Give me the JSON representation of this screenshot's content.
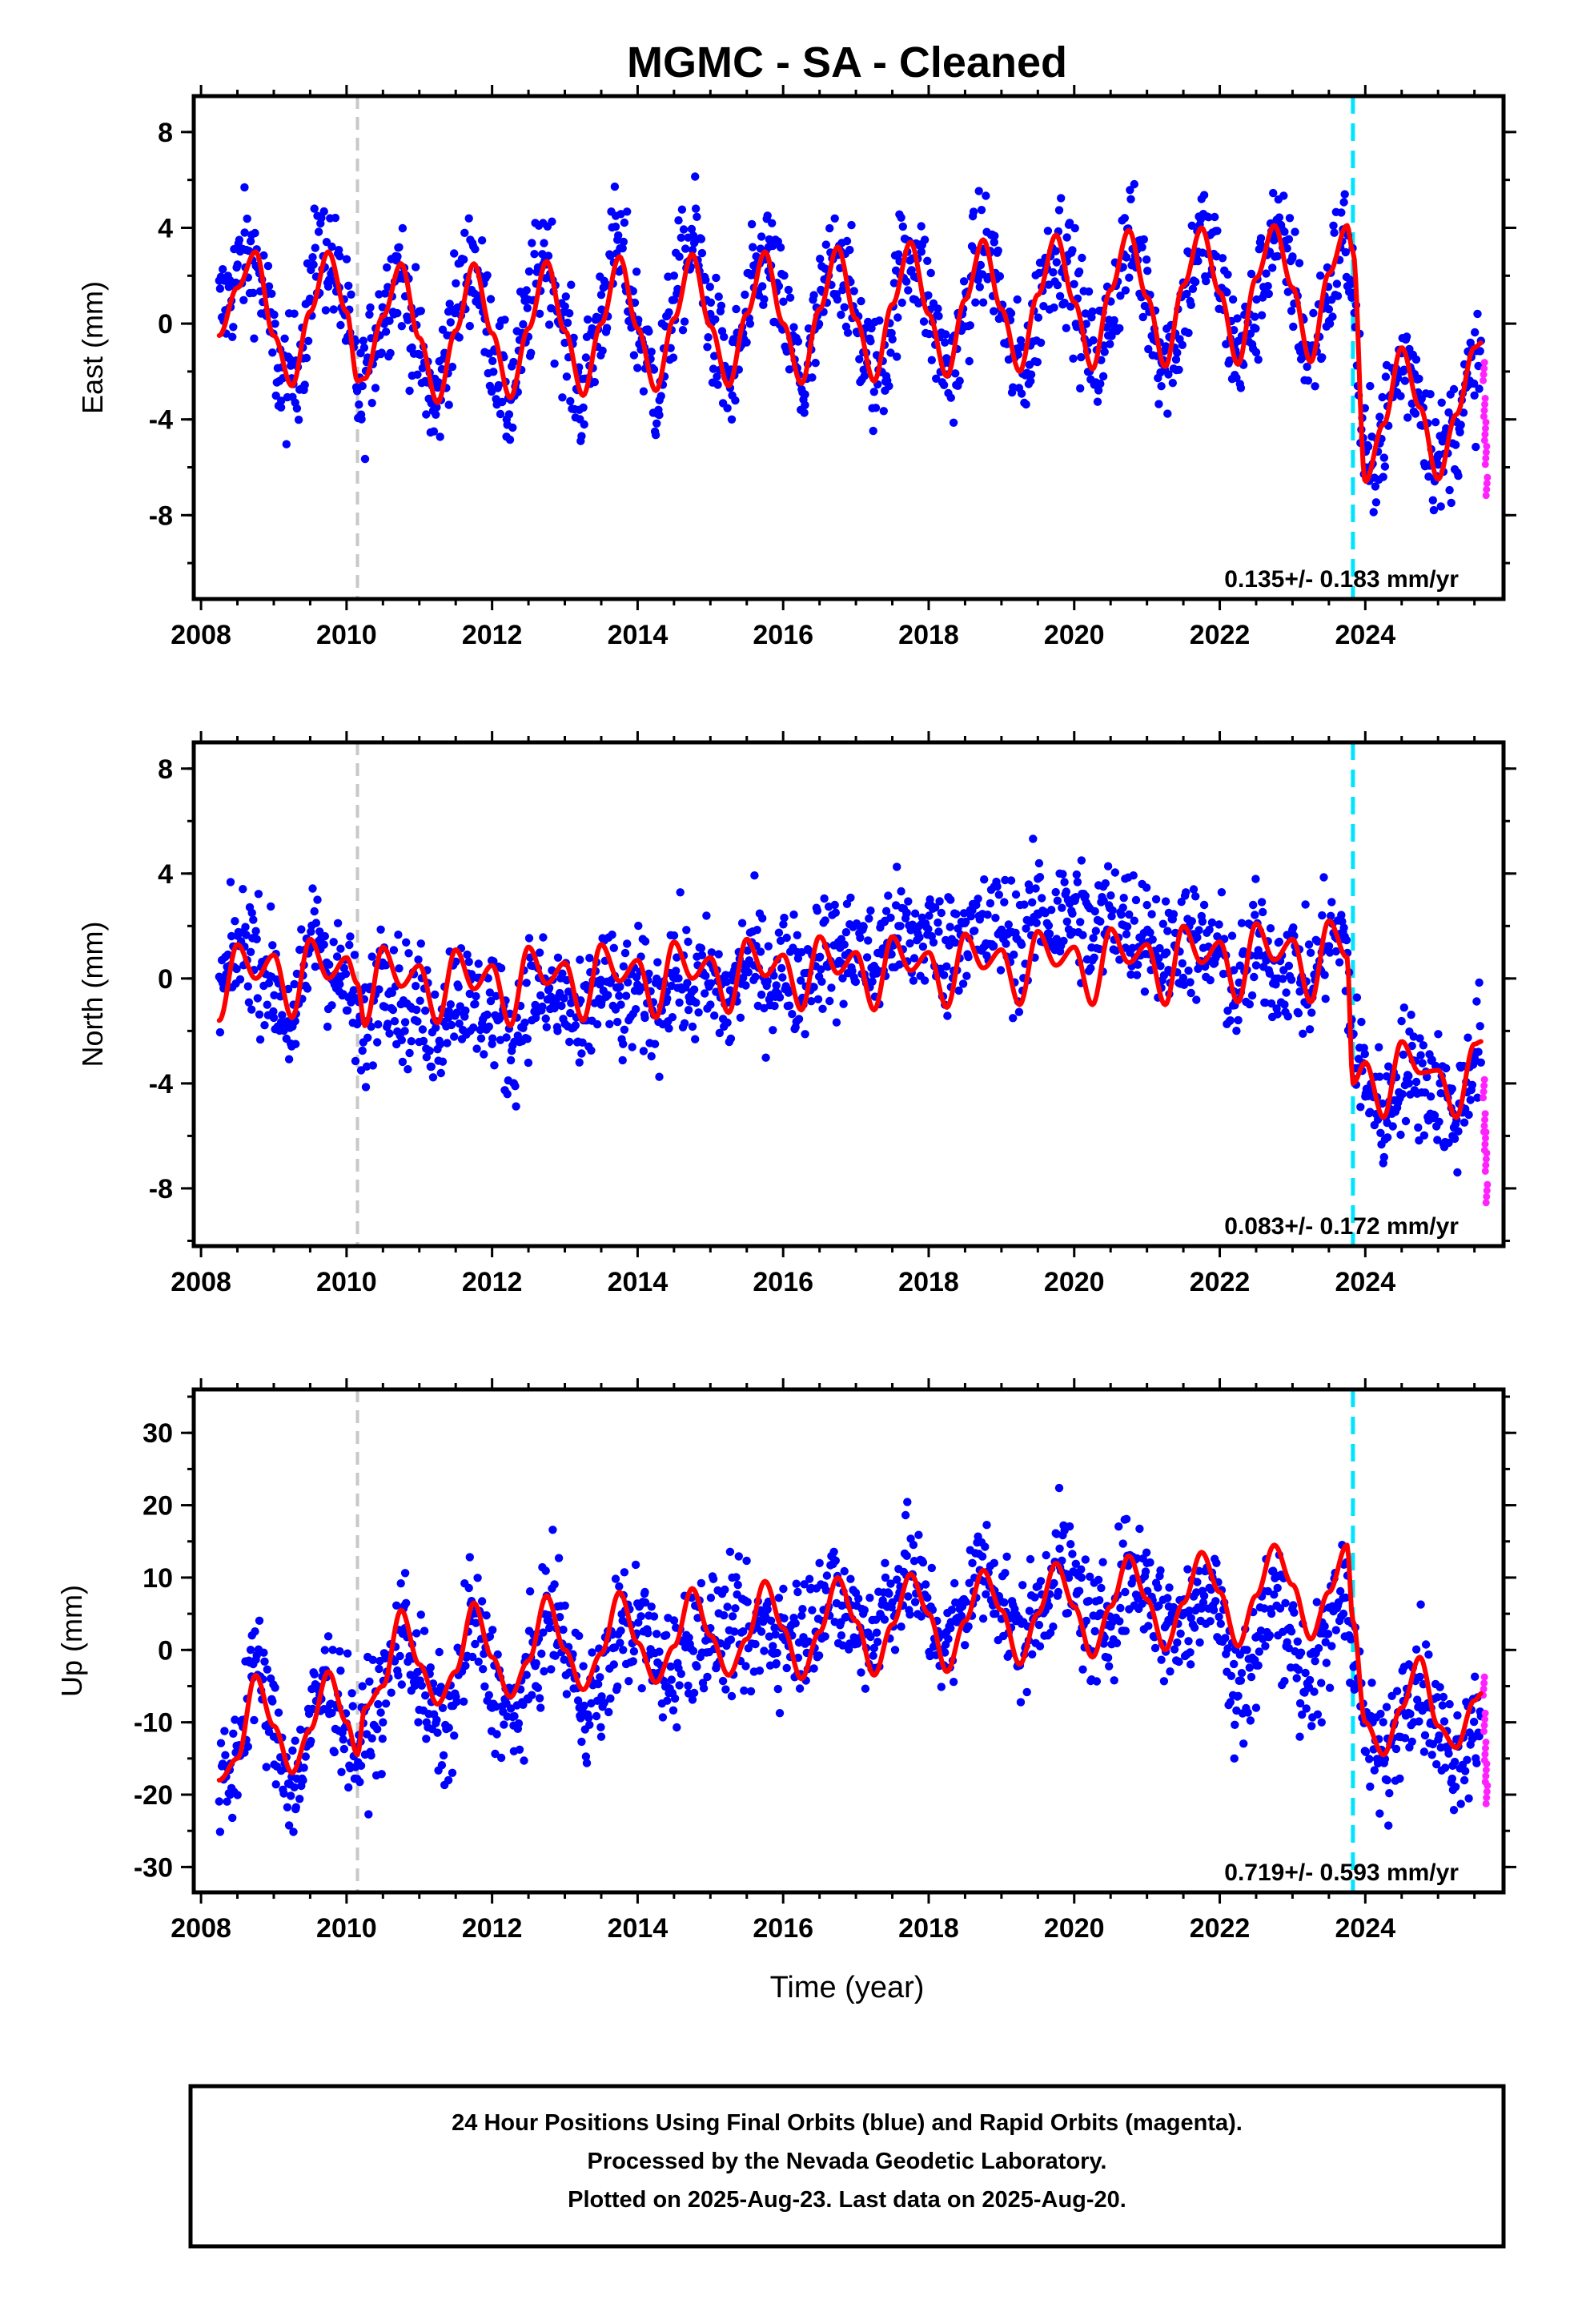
{
  "title": "MGMC  - SA - Cleaned",
  "xlabel": "Time (year)",
  "footer": {
    "line1": "24 Hour Positions Using Final Orbits (blue) and Rapid Orbits (magenta).",
    "line2": "Processed by the Nevada Geodetic Laboratory.",
    "line3": "Plotted on 2025-Aug-23. Last data on 2025-Aug-20."
  },
  "colors": {
    "final_points": "#0000ff",
    "rapid_points": "#ff22ff",
    "model": "#ff0000",
    "equipment_change": "#c8c8c8",
    "event": "#00e5ff"
  },
  "chart_data": [
    {
      "type": "scatter",
      "component": "east",
      "ylabel": "East (mm)",
      "rate": "0.135+/- 0.183 mm/yr",
      "xlim": [
        2007.9,
        2025.9
      ],
      "ylim": [
        -11.5,
        9.5
      ],
      "xticks": [
        2008,
        2010,
        2012,
        2014,
        2016,
        2018,
        2020,
        2022,
        2024
      ],
      "yticks": [
        -8,
        -4,
        0,
        4,
        8
      ],
      "vlines": {
        "equipment_change": 2010.15,
        "event": 2023.83
      },
      "series": [
        {
          "role": "model",
          "x": [
            2008.25,
            2008.5,
            2008.75,
            2009.0,
            2009.25,
            2009.5,
            2009.75,
            2010.0,
            2010.15,
            2010.25,
            2010.5,
            2010.75,
            2011.0,
            2011.25,
            2011.5,
            2011.75,
            2012.0,
            2012.25,
            2012.5,
            2012.75,
            2013.0,
            2013.25,
            2013.5,
            2013.75,
            2014.0,
            2014.25,
            2014.5,
            2014.75,
            2015.0,
            2015.25,
            2015.5,
            2015.75,
            2016.0,
            2016.25,
            2016.5,
            2016.75,
            2017.0,
            2017.25,
            2017.5,
            2017.75,
            2018.0,
            2018.25,
            2018.5,
            2018.75,
            2019.0,
            2019.25,
            2019.5,
            2019.75,
            2020.0,
            2020.25,
            2020.5,
            2020.75,
            2021.0,
            2021.25,
            2021.5,
            2021.75,
            2022.0,
            2022.25,
            2022.5,
            2022.75,
            2023.0,
            2023.25,
            2023.5,
            2023.75,
            2023.83,
            2024.0,
            2024.25,
            2024.5,
            2024.75,
            2025.0,
            2025.25,
            2025.5,
            2025.6
          ],
          "y": [
            -0.5,
            1.5,
            3.0,
            -0.5,
            -2.6,
            0.5,
            3.0,
            0.5,
            -2.4,
            -2.3,
            0.3,
            2.5,
            -0.6,
            -3.3,
            -0.3,
            2.5,
            -0.4,
            -3.1,
            -0.2,
            2.6,
            -0.3,
            -3.0,
            0.0,
            2.8,
            -0.2,
            -2.8,
            0.2,
            2.9,
            -0.1,
            -2.6,
            0.4,
            3.0,
            0.0,
            -2.5,
            0.6,
            3.2,
            0.2,
            -2.4,
            0.8,
            3.4,
            0.4,
            -2.2,
            1.0,
            3.5,
            0.6,
            -2.0,
            1.2,
            3.7,
            0.9,
            -1.9,
            1.4,
            3.9,
            1.1,
            -1.8,
            1.6,
            4.0,
            1.3,
            -1.7,
            1.9,
            4.1,
            1.5,
            -1.6,
            2.1,
            4.1,
            3.0,
            -6.6,
            -4.2,
            -1.0,
            -3.5,
            -6.5,
            -3.8,
            -1.0,
            -0.8
          ]
        },
        {
          "role": "final",
          "x": [
            2008.4,
            2008.6,
            2008.9,
            2009.1,
            2009.4,
            2009.6,
            2009.9,
            2010.2,
            2010.4,
            2010.7,
            2010.9,
            2011.2,
            2011.4,
            2011.7,
            2011.9,
            2012.2,
            2012.5,
            2012.7,
            2013.0,
            2013.2,
            2013.5,
            2013.7,
            2014.0,
            2014.3,
            2014.5,
            2014.8,
            2015.0,
            2015.3,
            2015.6,
            2015.8,
            2016.1,
            2016.3,
            2016.6,
            2016.8,
            2017.1,
            2017.4,
            2017.6,
            2017.9,
            2018.1,
            2018.4,
            2018.6,
            2018.9,
            2019.1,
            2019.4,
            2019.6,
            2019.9,
            2020.2,
            2020.4,
            2020.7,
            2020.9,
            2021.2,
            2021.4,
            2021.7,
            2021.9,
            2022.2,
            2022.5,
            2022.7,
            2023.0,
            2023.2,
            2023.5,
            2023.7,
            2024.0,
            2024.2,
            2024.5,
            2024.7,
            2025.0,
            2025.2,
            2025.5
          ],
          "y": [
            1.8,
            3.8,
            0.5,
            -3.5,
            -1.0,
            4.5,
            1.5,
            -3.8,
            -0.2,
            2.8,
            -1.0,
            -4.5,
            0.5,
            3.5,
            0.2,
            -4.0,
            1.0,
            4.2,
            -0.8,
            -3.6,
            1.2,
            4.5,
            0.0,
            -3.2,
            2.0,
            4.8,
            0.4,
            -3.0,
            1.5,
            3.2,
            -0.6,
            -3.4,
            1.8,
            3.0,
            -1.2,
            -2.8,
            2.6,
            3.0,
            -0.5,
            -2.6,
            2.0,
            3.4,
            -1.5,
            -2.4,
            2.2,
            3.6,
            -0.8,
            -2.2,
            2.8,
            3.2,
            -1.6,
            -1.5,
            3.0,
            3.8,
            -0.9,
            -1.2,
            3.6,
            2.8,
            -1.8,
            0.6,
            3.8,
            -6.0,
            -5.0,
            -2.0,
            -1.5,
            -5.5,
            -5.0,
            -3.0
          ]
        },
        {
          "role": "rapid",
          "x": [
            2025.62,
            2025.63,
            2025.64,
            2025.65,
            2025.66
          ],
          "y": [
            -2.0,
            -3.5,
            -4.5,
            -5.5,
            -6.8
          ]
        }
      ]
    },
    {
      "type": "scatter",
      "component": "north",
      "ylabel": "North (mm)",
      "rate": "0.083+/- 0.172 mm/yr",
      "xlim": [
        2007.9,
        2025.9
      ],
      "ylim": [
        -10.2,
        9.0
      ],
      "xticks": [
        2008,
        2010,
        2012,
        2014,
        2016,
        2018,
        2020,
        2022,
        2024
      ],
      "yticks": [
        -8,
        -4,
        0,
        4,
        8
      ],
      "vlines": {
        "equipment_change": 2010.15,
        "event": 2023.83
      },
      "series": [
        {
          "role": "model",
          "x": [
            2008.25,
            2008.5,
            2008.75,
            2009.0,
            2009.25,
            2009.5,
            2009.75,
            2010.0,
            2010.15,
            2010.25,
            2010.5,
            2010.75,
            2011.0,
            2011.25,
            2011.5,
            2011.75,
            2012.0,
            2012.25,
            2012.5,
            2012.75,
            2013.0,
            2013.25,
            2013.5,
            2013.75,
            2014.0,
            2014.25,
            2014.5,
            2014.75,
            2015.0,
            2015.25,
            2015.5,
            2015.75,
            2016.0,
            2016.25,
            2016.5,
            2016.75,
            2017.0,
            2017.25,
            2017.5,
            2017.75,
            2018.0,
            2018.25,
            2018.5,
            2018.75,
            2019.0,
            2019.25,
            2019.5,
            2019.75,
            2020.0,
            2020.25,
            2020.5,
            2020.75,
            2021.0,
            2021.25,
            2021.5,
            2021.75,
            2022.0,
            2022.25,
            2022.5,
            2022.75,
            2023.0,
            2023.25,
            2023.5,
            2023.75,
            2023.83,
            2024.0,
            2024.25,
            2024.5,
            2024.75,
            2025.0,
            2025.25,
            2025.5,
            2025.6
          ],
          "y": [
            -1.6,
            1.3,
            0.0,
            0.9,
            -1.5,
            1.5,
            0.0,
            0.8,
            -0.2,
            -1.8,
            1.2,
            -0.3,
            0.5,
            -1.7,
            1.1,
            -0.4,
            0.5,
            -1.8,
            1.2,
            -0.2,
            0.6,
            -1.6,
            1.3,
            -0.1,
            0.7,
            -1.5,
            1.4,
            0.0,
            0.8,
            -1.3,
            1.5,
            0.1,
            0.9,
            -1.2,
            1.6,
            0.2,
            1.0,
            -1.2,
            1.6,
            0.3,
            1.0,
            -1.1,
            1.7,
            0.4,
            1.1,
            -1.0,
            1.8,
            0.5,
            1.2,
            -1.0,
            1.9,
            0.6,
            1.3,
            -1.0,
            2.0,
            0.6,
            1.4,
            -0.9,
            2.1,
            0.7,
            1.5,
            -0.9,
            2.2,
            0.8,
            -4.0,
            -3.2,
            -5.3,
            -2.4,
            -3.6,
            -3.5,
            -5.3,
            -2.5,
            -2.4
          ]
        },
        {
          "role": "final",
          "x": [
            2008.4,
            2008.7,
            2009.0,
            2009.3,
            2009.6,
            2009.9,
            2010.2,
            2010.5,
            2010.8,
            2011.1,
            2011.4,
            2011.7,
            2012.0,
            2012.3,
            2012.6,
            2012.9,
            2013.2,
            2013.5,
            2013.8,
            2014.1,
            2014.4,
            2014.7,
            2015.0,
            2015.3,
            2015.6,
            2015.9,
            2016.2,
            2016.5,
            2016.8,
            2017.1,
            2017.4,
            2017.7,
            2018.0,
            2018.3,
            2018.6,
            2018.9,
            2019.2,
            2019.5,
            2019.8,
            2020.1,
            2020.4,
            2020.7,
            2021.0,
            2021.3,
            2021.6,
            2021.9,
            2022.2,
            2022.5,
            2022.8,
            2023.1,
            2023.4,
            2023.7,
            2024.0,
            2024.3,
            2024.6,
            2024.9,
            2025.2,
            2025.5
          ],
          "y": [
            0.5,
            2.5,
            -1.5,
            -2.5,
            3.0,
            -0.5,
            -3.5,
            0.5,
            -2.0,
            -3.0,
            -1.5,
            -2.0,
            -2.5,
            -4.0,
            -1.5,
            -2.0,
            -3.2,
            -1.0,
            -2.5,
            -1.5,
            -0.5,
            -1.2,
            -1.0,
            -0.8,
            0.5,
            -0.5,
            1.0,
            0.8,
            1.5,
            2.0,
            2.2,
            2.5,
            2.8,
            3.0,
            2.6,
            3.5,
            3.2,
            3.8,
            4.0,
            4.5,
            3.5,
            3.8,
            2.8,
            2.5,
            1.5,
            1.0,
            -0.5,
            0.5,
            0.0,
            -0.5,
            1.0,
            1.5,
            -4.5,
            -5.5,
            -4.0,
            -4.5,
            -6.0,
            -3.0
          ]
        },
        {
          "role": "rapid",
          "x": [
            2025.62,
            2025.63,
            2025.64,
            2025.65,
            2025.66
          ],
          "y": [
            -4.2,
            -5.5,
            -6.2,
            -7.0,
            -8.2
          ]
        }
      ]
    },
    {
      "type": "scatter",
      "component": "up",
      "ylabel": "Up (mm)",
      "rate": "0.719+/- 0.593 mm/yr",
      "xlim": [
        2007.9,
        2025.9
      ],
      "ylim": [
        -33.5,
        36
      ],
      "xticks": [
        2008,
        2010,
        2012,
        2014,
        2016,
        2018,
        2020,
        2022,
        2024
      ],
      "yticks": [
        -30,
        -20,
        -10,
        0,
        10,
        20,
        30
      ],
      "vlines": {
        "equipment_change": 2010.15,
        "event": 2023.83
      },
      "series": [
        {
          "role": "model",
          "x": [
            2008.25,
            2008.5,
            2008.75,
            2009.0,
            2009.25,
            2009.5,
            2009.75,
            2010.0,
            2010.15,
            2010.25,
            2010.5,
            2010.75,
            2011.0,
            2011.25,
            2011.5,
            2011.75,
            2012.0,
            2012.25,
            2012.5,
            2012.75,
            2013.0,
            2013.25,
            2013.5,
            2013.75,
            2014.0,
            2014.25,
            2014.5,
            2014.75,
            2015.0,
            2015.25,
            2015.5,
            2015.75,
            2016.0,
            2016.25,
            2016.5,
            2016.75,
            2017.0,
            2017.25,
            2017.5,
            2017.75,
            2018.0,
            2018.25,
            2018.5,
            2018.75,
            2019.0,
            2019.25,
            2019.5,
            2019.75,
            2020.0,
            2020.25,
            2020.5,
            2020.75,
            2021.0,
            2021.25,
            2021.5,
            2021.75,
            2022.0,
            2022.25,
            2022.5,
            2022.75,
            2023.0,
            2023.25,
            2023.5,
            2023.75,
            2023.83,
            2024.0,
            2024.25,
            2024.5,
            2024.75,
            2025.0,
            2025.25,
            2025.5,
            2025.6
          ],
          "y": [
            -18.0,
            -15.0,
            -3.5,
            -10.5,
            -17.0,
            -11.0,
            -3.0,
            -10.0,
            -14.5,
            -8.0,
            -5.0,
            5.5,
            -2.0,
            -7.5,
            -3.0,
            6.5,
            -1.0,
            -6.5,
            -1.5,
            7.5,
            0.0,
            -5.5,
            -0.5,
            8.0,
            1.0,
            -4.5,
            0.5,
            8.5,
            2.0,
            -3.5,
            1.5,
            9.5,
            3.0,
            -4.0,
            2.5,
            10.0,
            4.0,
            -3.5,
            3.5,
            10.5,
            5.0,
            -3.0,
            4.0,
            11.0,
            5.5,
            -2.0,
            5.0,
            12.0,
            6.0,
            -1.0,
            6.0,
            13.0,
            7.0,
            0.0,
            6.5,
            13.5,
            8.0,
            0.5,
            7.5,
            14.5,
            9.0,
            1.5,
            8.0,
            14.5,
            4.0,
            -10.0,
            -14.5,
            -8.0,
            -1.0,
            -10.5,
            -13.5,
            -7.0,
            -6.0
          ]
        },
        {
          "role": "final",
          "x": [
            2008.4,
            2008.7,
            2009.0,
            2009.3,
            2009.6,
            2009.9,
            2010.2,
            2010.5,
            2010.8,
            2011.1,
            2011.4,
            2011.7,
            2012.0,
            2012.3,
            2012.6,
            2012.9,
            2013.2,
            2013.5,
            2013.8,
            2014.1,
            2014.4,
            2014.7,
            2015.0,
            2015.3,
            2015.6,
            2015.9,
            2016.2,
            2016.5,
            2016.8,
            2017.1,
            2017.4,
            2017.7,
            2018.0,
            2018.3,
            2018.6,
            2018.9,
            2019.2,
            2019.5,
            2019.8,
            2020.1,
            2020.4,
            2020.7,
            2021.0,
            2021.3,
            2021.6,
            2021.9,
            2022.2,
            2022.5,
            2022.8,
            2023.1,
            2023.4,
            2023.7,
            2024.0,
            2024.3,
            2024.6,
            2024.9,
            2025.2,
            2025.5
          ],
          "y": [
            -20.0,
            2.0,
            -12.0,
            -22.0,
            -5.0,
            -8.0,
            -16.0,
            -10.0,
            3.0,
            -10.0,
            -18.0,
            4.0,
            -8.0,
            -14.0,
            -5.0,
            6.0,
            -8.0,
            -12.0,
            0.0,
            8.0,
            -5.0,
            -6.0,
            3.0,
            10.0,
            -3.0,
            -2.0,
            8.0,
            12.0,
            2.0,
            5.0,
            12.0,
            13.0,
            5.0,
            3.0,
            12.0,
            12.0,
            4.0,
            5.0,
            14.0,
            10.0,
            2.0,
            8.0,
            12.0,
            6.0,
            -2.0,
            10.0,
            -15.0,
            -8.0,
            2.0,
            -12.0,
            -10.0,
            5.0,
            -14.0,
            -18.0,
            -2.0,
            -10.0,
            -16.0,
            -12.0
          ]
        },
        {
          "role": "rapid",
          "x": [
            2025.62,
            2025.63,
            2025.64,
            2025.65,
            2025.66
          ],
          "y": [
            -5.0,
            -10.0,
            -14.0,
            -17.0,
            -20.0
          ]
        }
      ]
    }
  ]
}
